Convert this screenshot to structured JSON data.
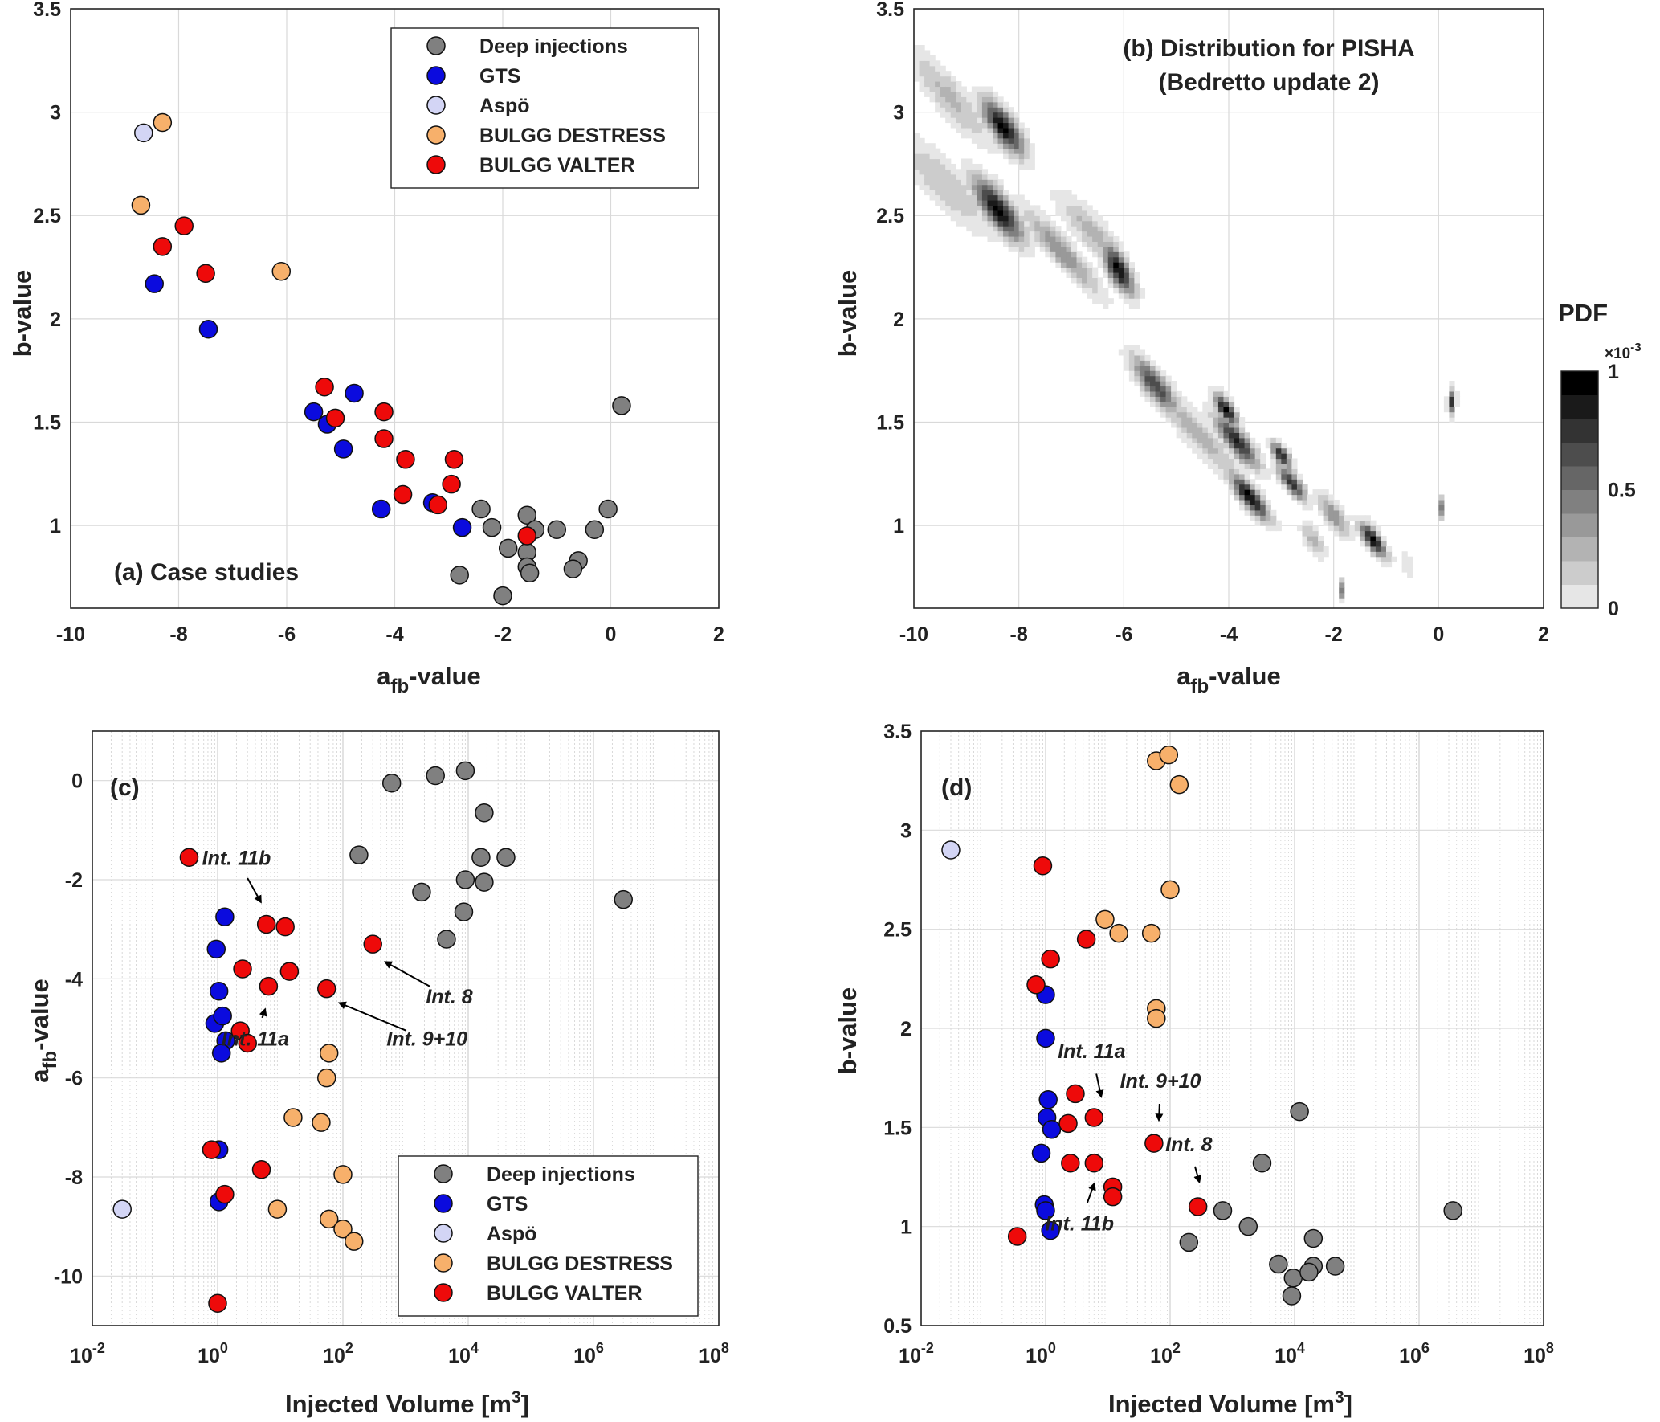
{
  "colors": {
    "deep": "#808080",
    "gts": "#0b0bde",
    "aspo": "#d3d5f5",
    "destress": "#f7b06b",
    "valter": "#ee0a0a"
  },
  "legend_labels": [
    "Deep injections",
    "GTS",
    "Aspö",
    "BULGG DESTRESS",
    "BULGG VALTER"
  ],
  "chart_data": [
    {
      "id": "a",
      "type": "scatter",
      "title": "(a) Case studies",
      "xlabel": "a",
      "xlabel_sub": "fb",
      "xlabel_suffix": "-value",
      "ylabel": "b-value",
      "xlim": [
        -10,
        2
      ],
      "ylim": [
        0.6,
        3.5
      ],
      "xticks": [
        -10,
        -8,
        -6,
        -4,
        -2,
        0,
        2
      ],
      "yticks": [
        1,
        1.5,
        2,
        2.5,
        3,
        3.5
      ],
      "grid": true,
      "legend_position": "top-right",
      "series": [
        {
          "name": "Deep injections",
          "points": [
            [
              0.2,
              1.58
            ],
            [
              -0.05,
              1.08
            ],
            [
              -2.4,
              1.08
            ],
            [
              -1.55,
              1.05
            ],
            [
              -1.4,
              0.98
            ],
            [
              -2.2,
              0.99
            ],
            [
              -1.0,
              0.98
            ],
            [
              -0.3,
              0.98
            ],
            [
              -1.9,
              0.89
            ],
            [
              -1.55,
              0.87
            ],
            [
              -1.55,
              0.8
            ],
            [
              -1.5,
              0.77
            ],
            [
              -0.6,
              0.83
            ],
            [
              -0.7,
              0.79
            ],
            [
              -2.8,
              0.76
            ],
            [
              -2.0,
              0.66
            ]
          ]
        },
        {
          "name": "GTS",
          "points": [
            [
              -8.45,
              2.17
            ],
            [
              -7.45,
              1.95
            ],
            [
              -4.75,
              1.64
            ],
            [
              -5.5,
              1.55
            ],
            [
              -5.25,
              1.49
            ],
            [
              -4.95,
              1.37
            ],
            [
              -3.3,
              1.11
            ],
            [
              -4.25,
              1.08
            ],
            [
              -2.75,
              0.99
            ]
          ]
        },
        {
          "name": "Aspö",
          "points": [
            [
              -8.65,
              2.9
            ]
          ]
        },
        {
          "name": "BULGG DESTRESS",
          "points": [
            [
              -8.3,
              2.95
            ],
            [
              -8.7,
              2.55
            ],
            [
              -6.1,
              2.23
            ]
          ]
        },
        {
          "name": "BULGG VALTER",
          "points": [
            [
              -7.9,
              2.45
            ],
            [
              -8.3,
              2.35
            ],
            [
              -7.5,
              2.22
            ],
            [
              -5.3,
              1.67
            ],
            [
              -5.1,
              1.52
            ],
            [
              -4.2,
              1.55
            ],
            [
              -4.2,
              1.42
            ],
            [
              -3.8,
              1.32
            ],
            [
              -2.9,
              1.32
            ],
            [
              -2.95,
              1.2
            ],
            [
              -3.85,
              1.15
            ],
            [
              -3.2,
              1.1
            ],
            [
              -1.55,
              0.95
            ]
          ]
        }
      ]
    },
    {
      "id": "b",
      "type": "heatmap",
      "title": "(b) Distribution for PISHA",
      "subtitle": "(Bedretto update 2)",
      "xlabel": "a",
      "xlabel_sub": "fb",
      "xlabel_suffix": "-value",
      "ylabel": "b-value",
      "xlim": [
        -10,
        2
      ],
      "ylim": [
        0.6,
        3.5
      ],
      "xticks": [
        -10,
        -8,
        -6,
        -4,
        -2,
        0,
        2
      ],
      "yticks": [
        1,
        1.5,
        2,
        2.5,
        3,
        3.5
      ],
      "grid": true,
      "colorbar": {
        "title": "PDF",
        "exponent_base": "×10",
        "exponent": "-3",
        "ticks": [
          "0",
          "0.5",
          "1"
        ],
        "range": [
          0,
          1
        ]
      },
      "blobs": [
        {
          "x0": -8.3,
          "y0": 2.93,
          "slope": -0.26,
          "len": 0.55,
          "wid": 0.055,
          "peak": 1.0
        },
        {
          "x0": -9.3,
          "y0": 3.07,
          "slope": -0.26,
          "len": 1.1,
          "wid": 0.07,
          "peak": 0.28
        },
        {
          "x0": -8.4,
          "y0": 2.53,
          "slope": -0.26,
          "len": 0.65,
          "wid": 0.06,
          "peak": 1.0
        },
        {
          "x0": -9.4,
          "y0": 2.65,
          "slope": -0.22,
          "len": 1.3,
          "wid": 0.08,
          "peak": 0.25
        },
        {
          "x0": -7.2,
          "y0": 2.33,
          "slope": -0.26,
          "len": 1.0,
          "wid": 0.05,
          "peak": 0.45
        },
        {
          "x0": -6.6,
          "y0": 2.42,
          "slope": -0.24,
          "len": 0.9,
          "wid": 0.06,
          "peak": 0.3
        },
        {
          "x0": -6.1,
          "y0": 2.24,
          "slope": -0.3,
          "len": 0.4,
          "wid": 0.055,
          "peak": 1.0
        },
        {
          "x0": -5.4,
          "y0": 1.68,
          "slope": -0.26,
          "len": 0.6,
          "wid": 0.05,
          "peak": 0.75
        },
        {
          "x0": -4.6,
          "y0": 1.45,
          "slope": -0.26,
          "len": 1.3,
          "wid": 0.06,
          "peak": 0.3
        },
        {
          "x0": -4.05,
          "y0": 1.56,
          "slope": -0.26,
          "len": 0.3,
          "wid": 0.035,
          "peak": 1.0
        },
        {
          "x0": -3.85,
          "y0": 1.41,
          "slope": -0.26,
          "len": 0.55,
          "wid": 0.045,
          "peak": 0.9
        },
        {
          "x0": -3.0,
          "y0": 1.34,
          "slope": -0.24,
          "len": 0.25,
          "wid": 0.03,
          "peak": 0.9
        },
        {
          "x0": -2.8,
          "y0": 1.21,
          "slope": -0.26,
          "len": 0.35,
          "wid": 0.035,
          "peak": 0.85
        },
        {
          "x0": -3.6,
          "y0": 1.14,
          "slope": -0.26,
          "len": 0.5,
          "wid": 0.04,
          "peak": 1.0
        },
        {
          "x0": -2.0,
          "y0": 1.05,
          "slope": -0.26,
          "len": 0.4,
          "wid": 0.045,
          "peak": 0.45
        },
        {
          "x0": -1.25,
          "y0": 0.93,
          "slope": -0.26,
          "len": 0.35,
          "wid": 0.035,
          "peak": 1.0
        },
        {
          "x0": -0.6,
          "y0": 0.81,
          "slope": -6.0,
          "len": 0.07,
          "wid": 0.025,
          "peak": 1.0
        },
        {
          "x0": -1.4,
          "y0": 0.83,
          "slope": -6.0,
          "len": 0.07,
          "wid": 0.02,
          "peak": 0.6
        },
        {
          "x0": 0.05,
          "y0": 1.09,
          "slope": 6.0,
          "len": 0.07,
          "wid": 0.02,
          "peak": 0.5
        },
        {
          "x0": 0.25,
          "y0": 1.6,
          "slope": 0.3,
          "len": 0.1,
          "wid": 0.04,
          "peak": 0.8
        },
        {
          "x0": -1.85,
          "y0": 0.69,
          "slope": -6.0,
          "len": 0.06,
          "wid": 0.025,
          "peak": 0.55
        },
        {
          "x0": -2.4,
          "y0": 0.93,
          "slope": -0.26,
          "len": 0.3,
          "wid": 0.04,
          "peak": 0.3
        }
      ]
    },
    {
      "id": "c",
      "type": "scatter",
      "title": "(c)",
      "xlabel": "Injected Volume [m",
      "xlabel_sup": "3",
      "xlabel_suffix": "]",
      "ylabel": "a",
      "ylabel_sub": "fb",
      "ylabel_suffix": "-value",
      "xscale": "log",
      "xlim": [
        0.01,
        100000000
      ],
      "ylim": [
        -11,
        1
      ],
      "xtick_exponents": [
        -2,
        0,
        2,
        4,
        6,
        8
      ],
      "yticks": [
        0,
        -2,
        -4,
        -6,
        -8,
        -10
      ],
      "grid": true,
      "legend_position": "bottom-right",
      "series": [
        {
          "name": "Deep injections",
          "points": [
            [
              9000,
              0.2
            ],
            [
              3000,
              0.1
            ],
            [
              600,
              -0.05
            ],
            [
              18000,
              -0.65
            ],
            [
              180,
              -1.5
            ],
            [
              16000,
              -1.55
            ],
            [
              40000,
              -1.55
            ],
            [
              1800,
              -2.25
            ],
            [
              9000,
              -2.0
            ],
            [
              18000,
              -2.05
            ],
            [
              3000000,
              -2.4
            ],
            [
              8500,
              -2.65
            ],
            [
              4500,
              -3.2
            ]
          ]
        },
        {
          "name": "GTS",
          "points": [
            [
              1.3,
              -2.75
            ],
            [
              0.95,
              -3.4
            ],
            [
              1.05,
              -4.25
            ],
            [
              0.9,
              -4.9
            ],
            [
              1.2,
              -4.75
            ],
            [
              1.35,
              -5.25
            ],
            [
              1.15,
              -5.5
            ],
            [
              1.05,
              -7.45
            ],
            [
              1.05,
              -8.5
            ]
          ]
        },
        {
          "name": "Aspö",
          "points": [
            [
              0.03,
              -8.65
            ]
          ]
        },
        {
          "name": "BULGG DESTRESS",
          "points": [
            [
              60,
              -5.5
            ],
            [
              55,
              -6.0
            ],
            [
              16,
              -6.8
            ],
            [
              45,
              -6.9
            ],
            [
              100,
              -7.95
            ],
            [
              9,
              -8.65
            ],
            [
              60,
              -8.85
            ],
            [
              100,
              -9.05
            ],
            [
              150,
              -9.3
            ]
          ]
        },
        {
          "name": "BULGG VALTER",
          "points": [
            [
              0.35,
              -1.55
            ],
            [
              6,
              -2.9
            ],
            [
              12,
              -2.95
            ],
            [
              300,
              -3.3
            ],
            [
              2.5,
              -3.8
            ],
            [
              14,
              -3.85
            ],
            [
              6.5,
              -4.15
            ],
            [
              55,
              -4.2
            ],
            [
              2.3,
              -5.05
            ],
            [
              3,
              -5.3
            ],
            [
              0.8,
              -7.45
            ],
            [
              5,
              -7.85
            ],
            [
              1.3,
              -8.35
            ],
            [
              1.0,
              -10.55
            ]
          ]
        }
      ],
      "annotations": [
        {
          "text": "Int. 11b",
          "tx": 2.0,
          "ty": -1.7,
          "ax": 6,
          "ay": -2.65
        },
        {
          "text": "Int. 11a",
          "tx": 4.0,
          "ty": -5.35,
          "ax": 6.5,
          "ay": -4.4
        },
        {
          "text": "Int. 9+10",
          "tx": 2200,
          "ty": -5.35,
          "ax": 60,
          "ay": -4.4
        },
        {
          "text": "Int. 8",
          "tx": 5000,
          "ty": -4.5,
          "ax": 330,
          "ay": -3.55
        }
      ]
    },
    {
      "id": "d",
      "type": "scatter",
      "title": "(d)",
      "xlabel": "Injected Volume [m",
      "xlabel_sup": "3",
      "xlabel_suffix": "]",
      "ylabel": "b-value",
      "xscale": "log",
      "xlim": [
        0.01,
        100000000
      ],
      "ylim": [
        0.5,
        3.5
      ],
      "xtick_exponents": [
        -2,
        0,
        2,
        4,
        6,
        8
      ],
      "yticks": [
        0.5,
        1,
        1.5,
        2,
        2.5,
        3,
        3.5
      ],
      "grid": true,
      "series": [
        {
          "name": "Deep injections",
          "points": [
            [
              12000,
              1.58
            ],
            [
              3000,
              1.32
            ],
            [
              700,
              1.08
            ],
            [
              3500000,
              1.08
            ],
            [
              1800,
              1.0
            ],
            [
              20000,
              0.94
            ],
            [
              200,
              0.92
            ],
            [
              5500,
              0.81
            ],
            [
              20000,
              0.8
            ],
            [
              45000,
              0.8
            ],
            [
              9500,
              0.74
            ],
            [
              17000,
              0.77
            ],
            [
              9000,
              0.65
            ]
          ]
        },
        {
          "name": "GTS",
          "points": [
            [
              1.0,
              2.17
            ],
            [
              1.0,
              1.95
            ],
            [
              1.1,
              1.64
            ],
            [
              1.05,
              1.55
            ],
            [
              1.25,
              1.49
            ],
            [
              0.85,
              1.37
            ],
            [
              0.95,
              1.11
            ],
            [
              1.0,
              1.08
            ],
            [
              1.2,
              0.98
            ]
          ]
        },
        {
          "name": "Aspö",
          "points": [
            [
              0.03,
              2.9
            ]
          ]
        },
        {
          "name": "BULGG DESTRESS",
          "points": [
            [
              60,
              3.35
            ],
            [
              95,
              3.38
            ],
            [
              140,
              3.23
            ],
            [
              100,
              2.7
            ],
            [
              9,
              2.55
            ],
            [
              15,
              2.48
            ],
            [
              50,
              2.48
            ],
            [
              60,
              2.1
            ],
            [
              60,
              2.05
            ]
          ]
        },
        {
          "name": "BULGG VALTER",
          "points": [
            [
              0.9,
              2.82
            ],
            [
              1.2,
              2.35
            ],
            [
              4.5,
              2.45
            ],
            [
              0.7,
              2.22
            ],
            [
              3,
              1.67
            ],
            [
              2.3,
              1.52
            ],
            [
              6,
              1.55
            ],
            [
              55,
              1.42
            ],
            [
              2.5,
              1.32
            ],
            [
              6,
              1.32
            ],
            [
              12,
              1.2
            ],
            [
              12,
              1.15
            ],
            [
              280,
              1.1
            ],
            [
              0.35,
              0.95
            ]
          ]
        }
      ],
      "annotations": [
        {
          "text": "Int. 11a",
          "tx": 5.5,
          "ty": 1.85,
          "ax": 8.5,
          "ay": 1.6
        },
        {
          "text": "Int. 9+10",
          "tx": 70,
          "ty": 1.7,
          "ax": 65,
          "ay": 1.48
        },
        {
          "text": "Int. 8",
          "tx": 200,
          "ty": 1.38,
          "ax": 330,
          "ay": 1.17
        },
        {
          "text": "Int. 11b",
          "tx": 3.5,
          "ty": 0.98,
          "ax": 7,
          "ay": 1.27
        }
      ]
    }
  ]
}
